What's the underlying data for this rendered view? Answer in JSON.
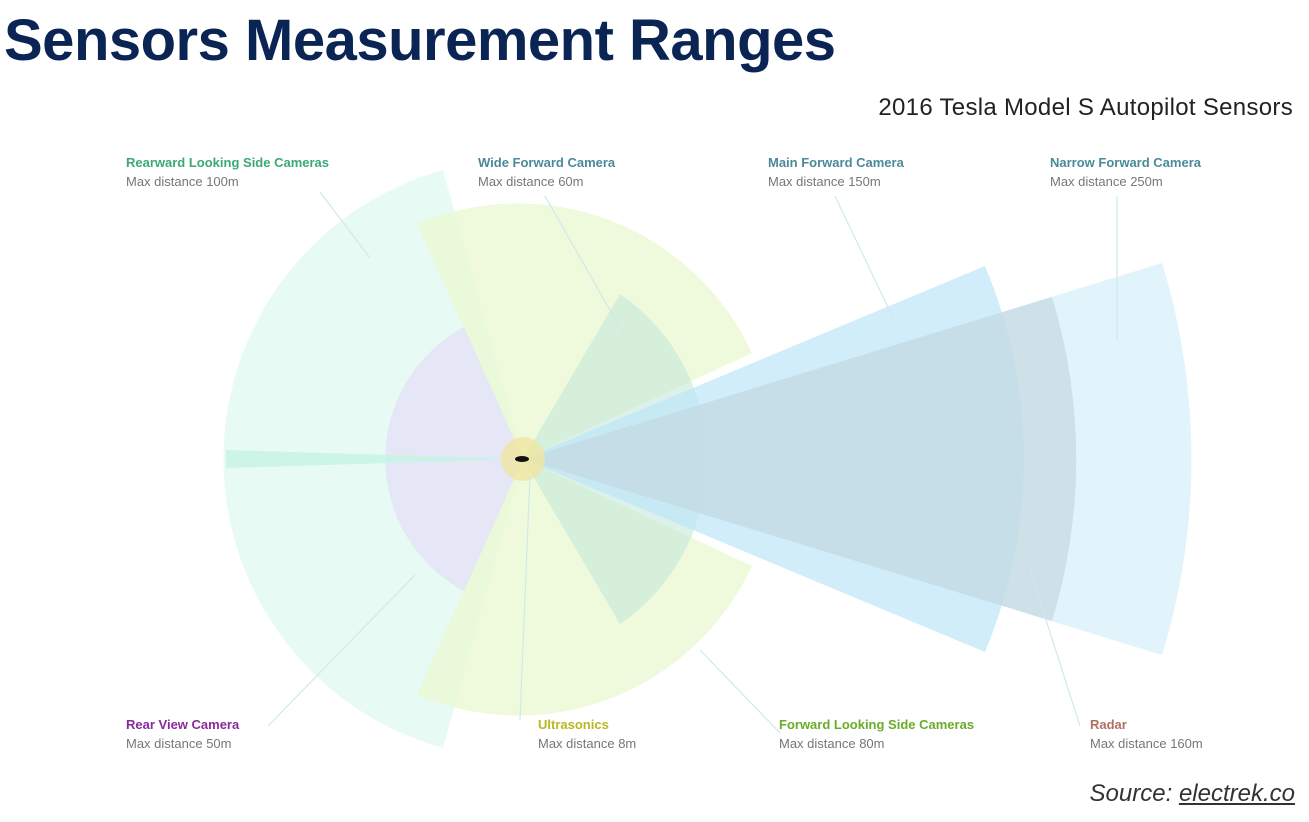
{
  "title": "Sensors Measurement Ranges",
  "subtitle": "2016 Tesla Model S Autopilot Sensors",
  "source": {
    "prefix": "Source: ",
    "link": "electrek.co"
  },
  "sensors": [
    {
      "id": "rearward_side",
      "name": "Rearward Looking Side Cameras",
      "distance": "Max distance 100m",
      "color": "#3aa878",
      "fill": "#c9f3e6"
    },
    {
      "id": "wide_forward",
      "name": "Wide Forward Camera",
      "distance": "Max distance 60m",
      "color": "#4a8a9a",
      "fill": "#bfe6d8"
    },
    {
      "id": "main_forward",
      "name": "Main Forward Camera",
      "distance": "Max distance 150m",
      "color": "#4a8a9a",
      "fill": "#bde6f6"
    },
    {
      "id": "narrow_forward",
      "name": "Narrow Forward Camera",
      "distance": "Max distance 250m",
      "color": "#4a8a9a",
      "fill": "#bde6f6"
    },
    {
      "id": "rear_view",
      "name": "Rear View Camera",
      "distance": "Max distance 50m",
      "color": "#8a2a9a",
      "fill": "#e4e2f6"
    },
    {
      "id": "ultrasonics",
      "name": "Ultrasonics",
      "distance": "Max distance 8m",
      "color": "#b8b820",
      "fill": "#f0e6a0"
    },
    {
      "id": "forward_side",
      "name": "Forward Looking Side Cameras",
      "distance": "Max distance 80m",
      "color": "#6aac2a",
      "fill": "#eaf8d0"
    },
    {
      "id": "radar",
      "name": "Radar",
      "distance": "Max distance 160m",
      "color": "#b07060",
      "fill": "#d6d6d6"
    }
  ]
}
